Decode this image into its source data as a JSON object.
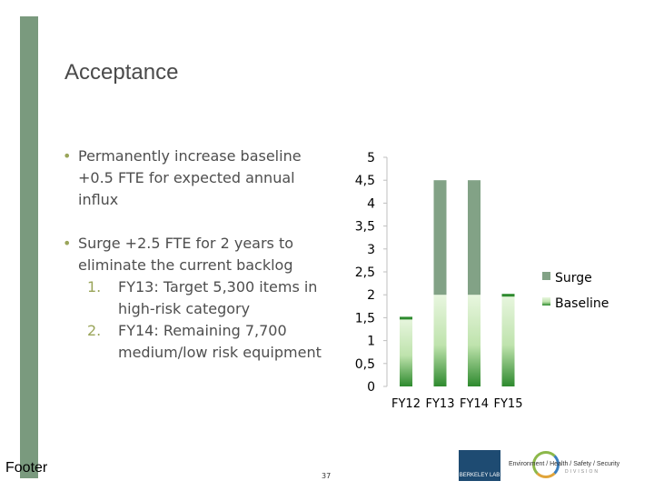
{
  "slide": {
    "title": "Acceptance",
    "bullets": [
      "Permanently increase baseline +0.5 FTE for expected annual influx",
      "Surge +2.5 FTE for 2 years to eliminate the current backlog"
    ],
    "bullet_marker": "•",
    "subitems": [
      {
        "num": "1.",
        "text": "FY13: Target 5,300 items in high-risk category"
      },
      {
        "num": "2.",
        "text": "FY14: Remaining 7,700 medium/low risk equipment"
      }
    ],
    "footer": "Footer",
    "page_number": "37",
    "logos": {
      "berkeley": "BERKELEY LAB",
      "ehss": "Environment / Health / Safety / Security",
      "ehss_sub": "DIVISION"
    }
  },
  "colors": {
    "accent_bar": "#7a9a7e",
    "surge": "#82a286",
    "baseline_light": "#d6efc9",
    "baseline_dark": "#2e8a2e",
    "bullet_marker": "#9aa55a"
  },
  "chart_data": {
    "type": "bar",
    "stacked": true,
    "categories": [
      "FY12",
      "FY13",
      "FY14",
      "FY15"
    ],
    "series": [
      {
        "name": "Baseline",
        "values": [
          1.5,
          2.0,
          2.0,
          2.0
        ]
      },
      {
        "name": "Surge",
        "values": [
          0,
          2.5,
          2.5,
          0
        ]
      }
    ],
    "ylim": [
      0,
      5
    ],
    "yticks": [
      "0",
      "0,5",
      "1",
      "1,5",
      "2",
      "2,5",
      "3",
      "3,5",
      "4",
      "4,5",
      "5"
    ],
    "grid": false,
    "legend_position": "right"
  }
}
